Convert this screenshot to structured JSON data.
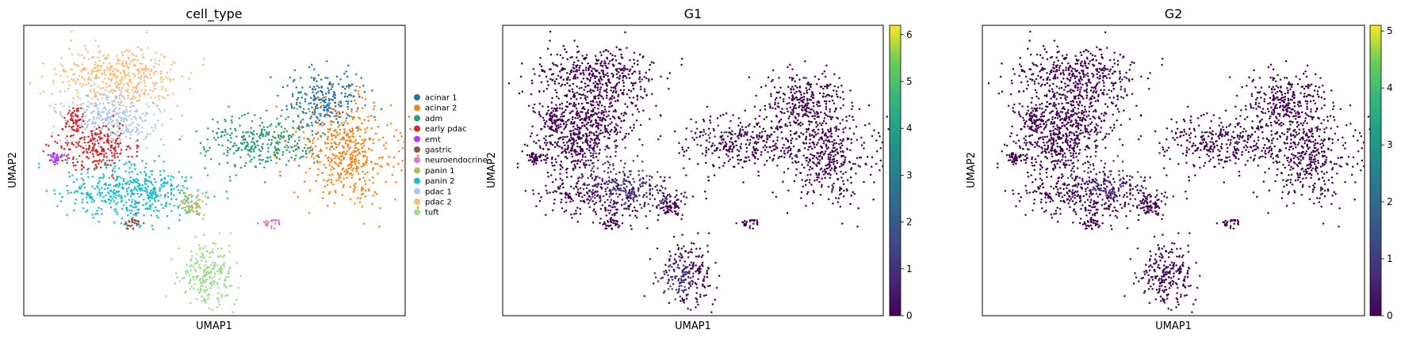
{
  "chart_data": [
    {
      "type": "scatter",
      "title": "cell_type",
      "xlabel": "UMAP1",
      "ylabel": "UMAP2",
      "color_mode": "categorical",
      "legend_position": "right-outside",
      "legend": [
        {
          "name": "acinar 1",
          "color": "#1f77b4"
        },
        {
          "name": "acinar 2",
          "color": "#ff7f0e"
        },
        {
          "name": "adm",
          "color": "#279e68"
        },
        {
          "name": "early pdac",
          "color": "#d62728"
        },
        {
          "name": "emt",
          "color": "#aa40fc"
        },
        {
          "name": "gastric",
          "color": "#8c564b"
        },
        {
          "name": "neuroendocrine",
          "color": "#e377c2"
        },
        {
          "name": "panin 1",
          "color": "#b5bd61"
        },
        {
          "name": "panin 2",
          "color": "#17becf"
        },
        {
          "name": "pdac 1",
          "color": "#aec7e8"
        },
        {
          "name": "pdac 2",
          "color": "#ffbb78"
        },
        {
          "name": "tuft",
          "color": "#98df8a"
        }
      ],
      "clusters": [
        {
          "label": "pdac 2",
          "cx": 0.24,
          "cy": 0.16,
          "rx": 0.15,
          "ry": 0.1,
          "n": 420
        },
        {
          "label": "pdac 1",
          "cx": 0.22,
          "cy": 0.31,
          "rx": 0.12,
          "ry": 0.09,
          "n": 360
        },
        {
          "label": "early pdac",
          "cx": 0.18,
          "cy": 0.42,
          "rx": 0.09,
          "ry": 0.08,
          "n": 230
        },
        {
          "label": "early pdac",
          "cx": 0.12,
          "cy": 0.32,
          "rx": 0.03,
          "ry": 0.05,
          "n": 60
        },
        {
          "label": "panin 2",
          "cx": 0.28,
          "cy": 0.58,
          "rx": 0.16,
          "ry": 0.09,
          "n": 480
        },
        {
          "label": "panin 1",
          "cx": 0.44,
          "cy": 0.62,
          "rx": 0.035,
          "ry": 0.04,
          "n": 70
        },
        {
          "label": "gastric",
          "cx": 0.28,
          "cy": 0.69,
          "rx": 0.02,
          "ry": 0.025,
          "n": 30
        },
        {
          "label": "adm",
          "cx": 0.63,
          "cy": 0.4,
          "rx": 0.14,
          "ry": 0.09,
          "n": 320
        },
        {
          "label": "acinar 1",
          "cx": 0.8,
          "cy": 0.25,
          "rx": 0.1,
          "ry": 0.09,
          "n": 240
        },
        {
          "label": "acinar 2",
          "cx": 0.86,
          "cy": 0.43,
          "rx": 0.12,
          "ry": 0.17,
          "n": 460
        },
        {
          "label": "emt",
          "cx": 0.07,
          "cy": 0.45,
          "rx": 0.025,
          "ry": 0.018,
          "n": 40
        },
        {
          "label": "neuroendocrine",
          "cx": 0.66,
          "cy": 0.69,
          "rx": 0.035,
          "ry": 0.02,
          "n": 25
        },
        {
          "label": "tuft",
          "cx": 0.48,
          "cy": 0.87,
          "rx": 0.07,
          "ry": 0.09,
          "n": 230
        }
      ],
      "colorbar": null
    },
    {
      "type": "scatter",
      "title": "G1",
      "xlabel": "UMAP1",
      "ylabel": "UMAP2",
      "color_mode": "continuous",
      "cmap": "viridis",
      "colorbar": {
        "min": 0,
        "max": 6.2,
        "ticks": [
          "0",
          "1",
          "2",
          "3",
          "4",
          "5",
          "6"
        ],
        "tick_values": [
          0,
          1,
          2,
          3,
          4,
          5,
          6
        ]
      },
      "base_value": 0.15,
      "hot_regions": [
        {
          "cx": 0.33,
          "cy": 0.52,
          "rx": 0.12,
          "ry": 0.1,
          "value": 1.6
        },
        {
          "cx": 0.45,
          "cy": 0.9,
          "rx": 0.05,
          "ry": 0.06,
          "value": 1.8
        },
        {
          "cx": 0.54,
          "cy": 0.37,
          "rx": 0.05,
          "ry": 0.04,
          "value": 1.3
        }
      ]
    },
    {
      "type": "scatter",
      "title": "G2",
      "xlabel": "UMAP1",
      "ylabel": "UMAP2",
      "color_mode": "continuous",
      "cmap": "viridis",
      "colorbar": {
        "min": 0,
        "max": 5.1,
        "ticks": [
          "0",
          "1",
          "2",
          "3",
          "4",
          "5"
        ],
        "tick_values": [
          0,
          1,
          2,
          3,
          4,
          5
        ]
      },
      "base_value": 0.12,
      "hot_regions": [
        {
          "cx": 0.33,
          "cy": 0.52,
          "rx": 0.1,
          "ry": 0.08,
          "value": 0.9
        }
      ]
    }
  ]
}
